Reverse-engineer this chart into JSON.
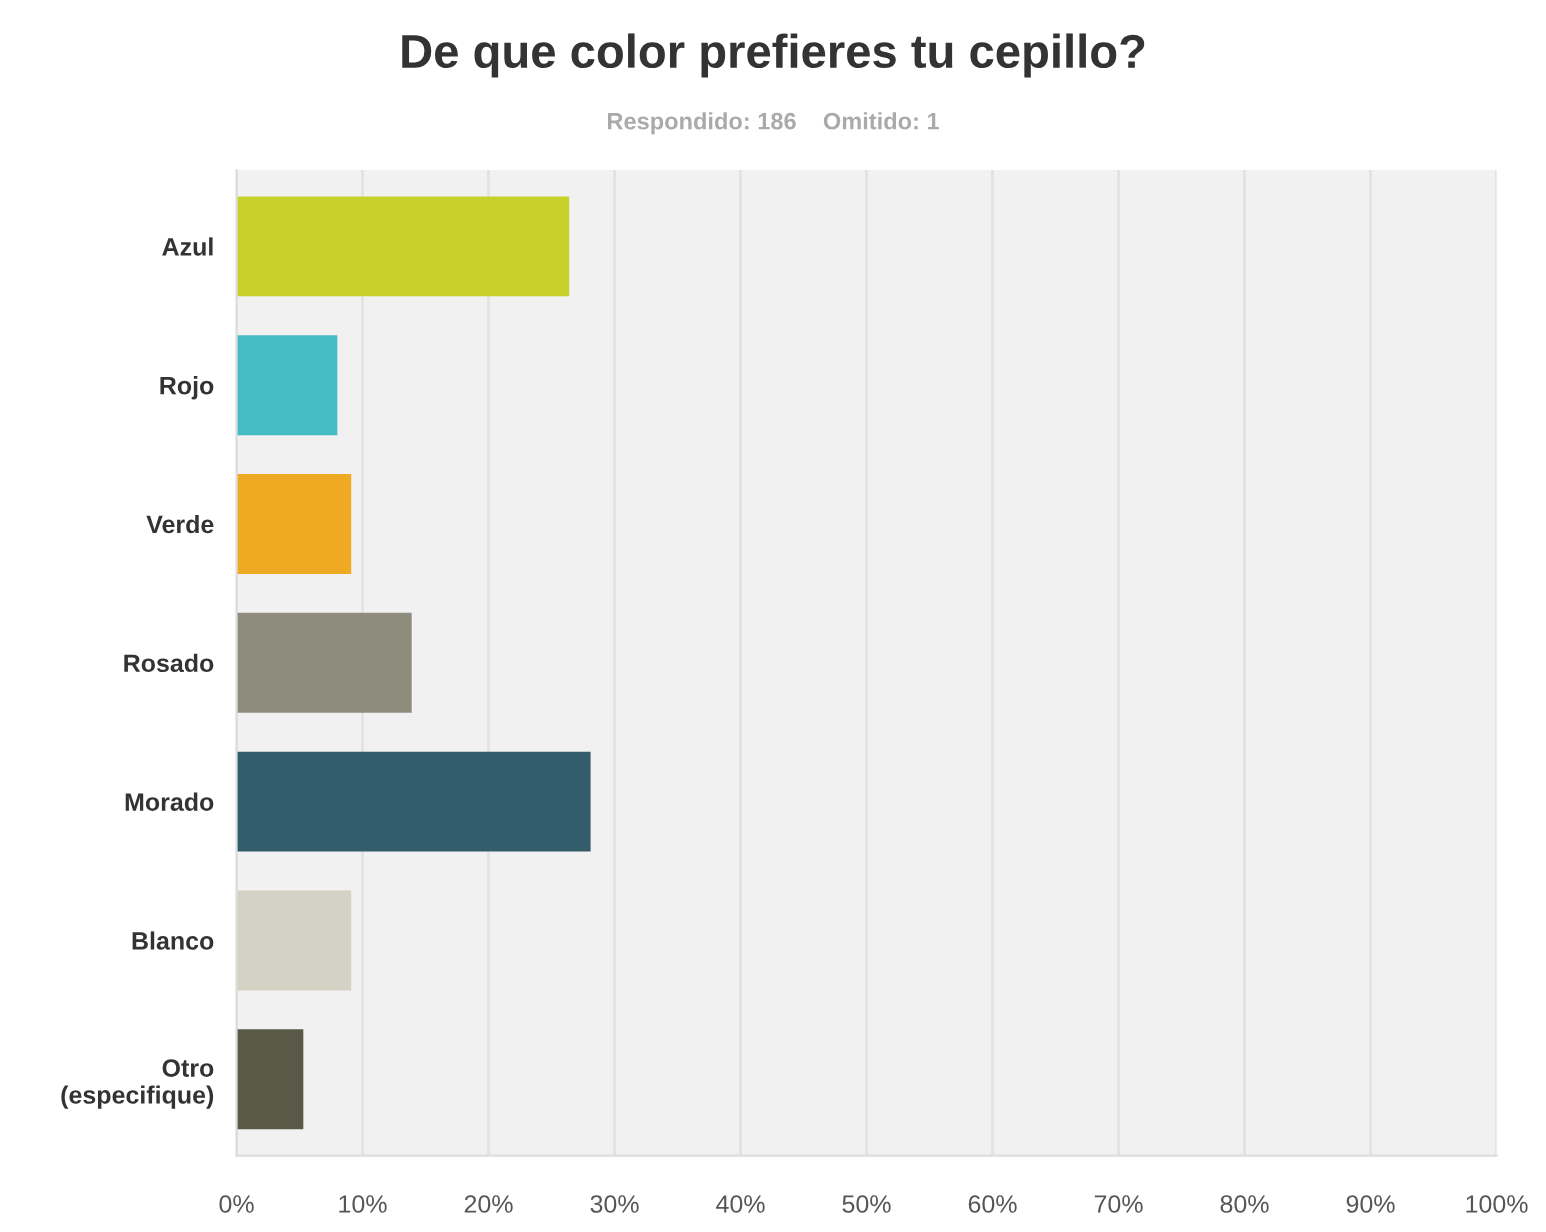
{
  "chart_data": {
    "type": "bar",
    "orientation": "horizontal",
    "title": "De que color prefieres tu cepillo?",
    "subtitle": "Respondido: 186    Omitido: 1",
    "categories": [
      "Azul",
      "Rojo",
      "Verde",
      "Rosado",
      "Morado",
      "Blanco",
      "Otro\n(especifique)"
    ],
    "values": [
      26.4,
      8.0,
      9.1,
      13.9,
      28.1,
      9.1,
      5.3
    ],
    "colors": [
      "#c8d12a",
      "#45bcc3",
      "#f0a922",
      "#8e8d7d",
      "#335d6a",
      "#d3d2c4",
      "#5a5947"
    ],
    "xlim": [
      0,
      100
    ],
    "xticks": [
      {
        "value": 0,
        "label": "0%"
      },
      {
        "value": 10,
        "label": "10%"
      },
      {
        "value": 20,
        "label": "20%"
      },
      {
        "value": 30,
        "label": "30%"
      },
      {
        "value": 40,
        "label": "40%"
      },
      {
        "value": 50,
        "label": "50%"
      },
      {
        "value": 60,
        "label": "60%"
      },
      {
        "value": 70,
        "label": "70%"
      },
      {
        "value": 80,
        "label": "80%"
      },
      {
        "value": 90,
        "label": "90%"
      },
      {
        "value": 100,
        "label": "100%"
      }
    ],
    "grid": "x"
  }
}
